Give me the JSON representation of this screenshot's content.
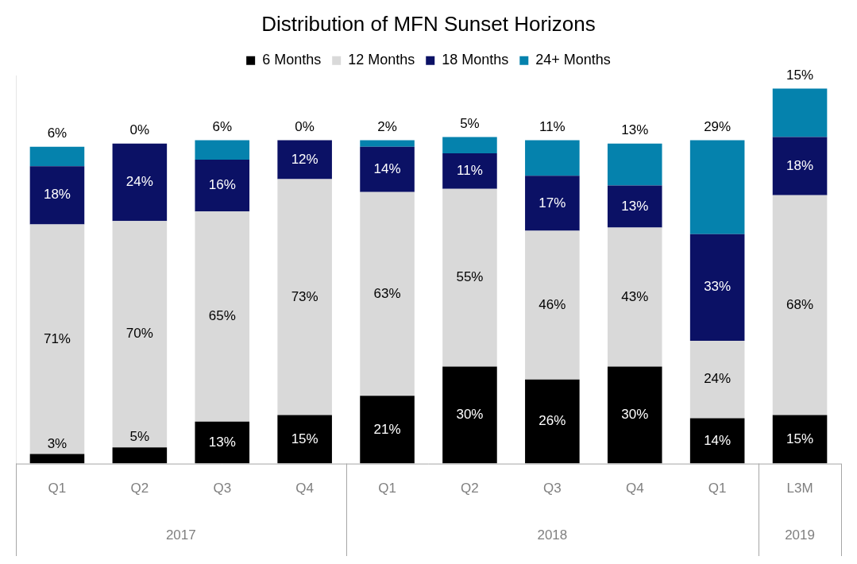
{
  "chart_data": {
    "type": "bar",
    "title": "Distribution of MFN Sunset Horizons",
    "categories": [
      "Q1",
      "Q2",
      "Q3",
      "Q4",
      "Q1",
      "Q2",
      "Q3",
      "Q4",
      "Q1",
      "L3M"
    ],
    "category_groups": [
      {
        "label": "2017",
        "size": 4
      },
      {
        "label": "2018",
        "size": 5
      },
      {
        "label": "2019",
        "size": 1
      }
    ],
    "series": [
      {
        "name": "6 Months",
        "color": "#000000",
        "values": [
          3,
          5,
          13,
          15,
          21,
          30,
          26,
          30,
          14,
          15
        ],
        "value_labels": [
          "3%",
          "5%",
          "13%",
          "15%",
          "21%",
          "30%",
          "26%",
          "30%",
          "14%",
          "15%"
        ]
      },
      {
        "name": "12 Months",
        "color": "#d9d9d9",
        "values": [
          71,
          70,
          65,
          73,
          63,
          55,
          46,
          43,
          24,
          68
        ],
        "value_labels": [
          "71%",
          "70%",
          "65%",
          "73%",
          "63%",
          "55%",
          "46%",
          "43%",
          "24%",
          "68%"
        ]
      },
      {
        "name": "18 Months",
        "color": "#0b1165",
        "values": [
          18,
          24,
          16,
          12,
          14,
          11,
          17,
          13,
          33,
          18
        ],
        "value_labels": [
          "18%",
          "24%",
          "16%",
          "12%",
          "14%",
          "11%",
          "17%",
          "13%",
          "33%",
          "18%"
        ]
      },
      {
        "name": "24+ Months",
        "color": "#0582ad",
        "values": [
          6,
          0,
          6,
          0,
          2,
          5,
          11,
          13,
          29,
          15
        ],
        "value_labels": [
          "6%",
          "0%",
          "6%",
          "0%",
          "2%",
          "5%",
          "11%",
          "13%",
          "29%",
          "15%"
        ]
      }
    ],
    "stacked": true,
    "data_labels": true,
    "legend": "top",
    "grid": false,
    "tick_labels": "x",
    "ylim": [
      0,
      120
    ]
  }
}
